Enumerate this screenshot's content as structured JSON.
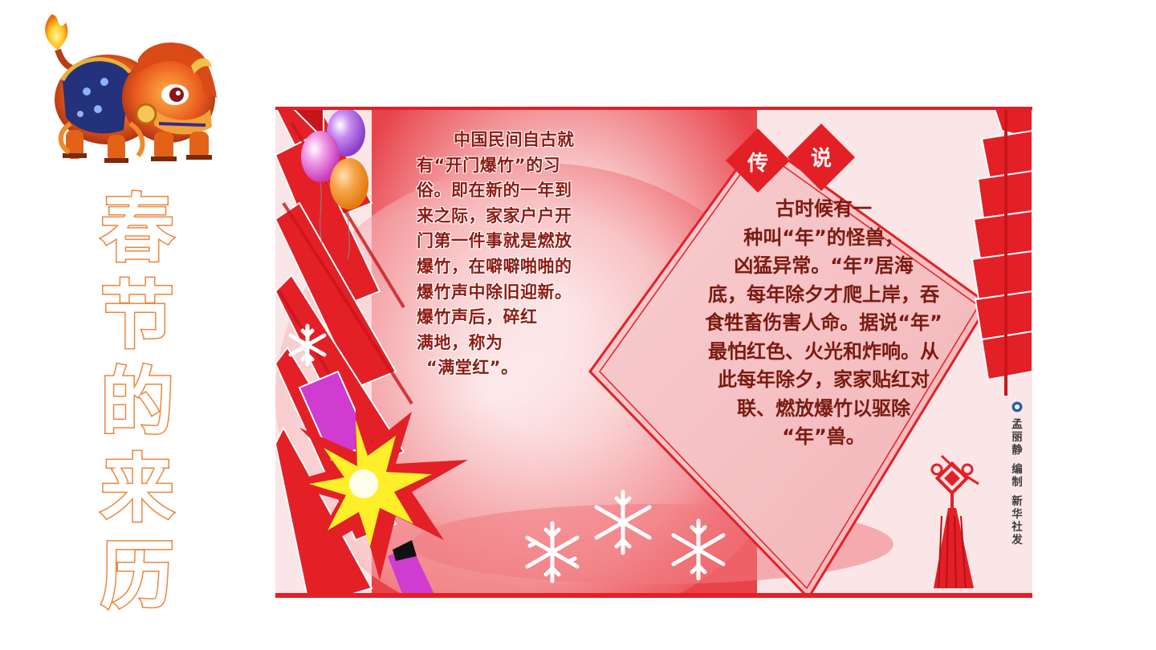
{
  "title": {
    "chars": [
      "春",
      "节",
      "的",
      "来",
      "历"
    ]
  },
  "poster": {
    "left_text": {
      "lines": [
        "中国民间自古就",
        "有“开门爆竹”的习",
        "俗。即在新的一年到",
        "来之际，家家户户开",
        "门第一件事就是燃放",
        "爆竹，在噼噼啪啪的",
        "爆竹声中除旧迎新。",
        "爆竹声后，碎红",
        "满地，称为",
        "“满堂红”。"
      ]
    },
    "legend": {
      "char1": "传",
      "char2": "说",
      "lines": [
        "古时候有一",
        "种叫“年”的怪兽，",
        "凶猛异常。“年”居海",
        "底，每年除夕才爬上岸，吞",
        "食牲畜伤害人命。据说“年”",
        "最怕红色、火光和炸响。从",
        "此每年除夕，家家贴红对",
        "联、燃放爆竹以驱除",
        "“年”兽。"
      ]
    },
    "credit": {
      "chars": [
        "孟",
        "丽",
        "静",
        "编",
        "制",
        "新",
        "华",
        "社",
        "发"
      ]
    }
  },
  "colors": {
    "title_outline": "#e8782a",
    "poster_red": "#e32026",
    "poster_pink": "#fbe3e4",
    "text_dark_red": "#8e1a12"
  },
  "icons": [
    "nian-beast-mascot",
    "balloons-icon",
    "firecracker-icon",
    "explosion-icon",
    "snowflake-icon",
    "chinese-knot-icon"
  ]
}
